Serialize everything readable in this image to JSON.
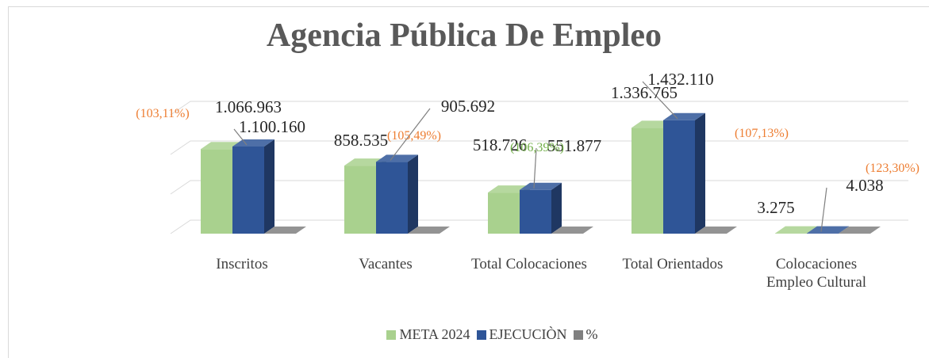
{
  "chart_data": {
    "type": "bar3d",
    "title": "Agencia Pública De Empleo",
    "categories": [
      "Inscritos",
      "Vacantes",
      "Total Colocaciones",
      "Total Orientados",
      "Colocaciones Empleo Cultural"
    ],
    "series": [
      {
        "name": "META 2024",
        "color": "#a9d18e",
        "values": [
          1066963,
          858535,
          518726,
          1336765,
          3275
        ],
        "value_labels": [
          "1.066.963",
          "858.535",
          "518.726",
          "1.336.765",
          "3.275"
        ]
      },
      {
        "name": "EJECUCIÒN",
        "color": "#2f5597",
        "values": [
          1100160,
          905692,
          551877,
          1432110,
          4038
        ],
        "value_labels": [
          "1.100.160",
          "905.692",
          "551.877",
          "1.432.110",
          "4.038"
        ]
      },
      {
        "name": "%",
        "color": "#808080",
        "values": [
          103.11,
          105.49,
          106.39,
          107.13,
          123.3
        ],
        "value_labels": [
          "(103,11%)",
          "(105,49%)",
          "(106,39%)",
          "(107,13%)",
          "(123,30%)"
        ],
        "label_colors": [
          "#ed7d31",
          "#ed7d31",
          "#70ad47",
          "#ed7d31",
          "#ed7d31"
        ]
      }
    ],
    "ylim": [
      0,
      1600000
    ],
    "yticks": [
      0,
      500000,
      1000000,
      1500000
    ],
    "grid": true,
    "legend": "bottom"
  }
}
